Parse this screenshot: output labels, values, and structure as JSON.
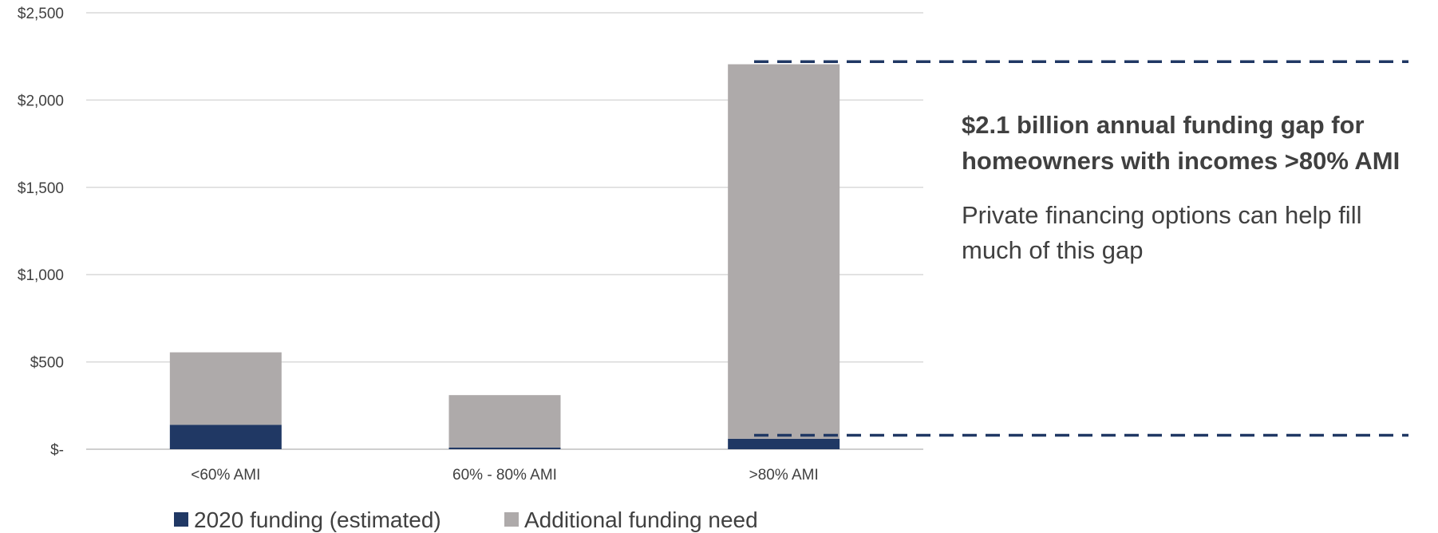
{
  "chart_data": {
    "type": "bar",
    "stacked": true,
    "categories": [
      "<60% AMI",
      "60% - 80% AMI",
      ">80% AMI"
    ],
    "series": [
      {
        "name": "2020 funding (estimated)",
        "color": "#203864",
        "values": [
          140,
          10,
          60
        ]
      },
      {
        "name": "Additional funding need",
        "color": "#AEAAAA",
        "values": [
          415,
          300,
          2145
        ]
      }
    ],
    "ylim": [
      0,
      2500
    ],
    "ytick_values": [
      0,
      500,
      1000,
      1500,
      2000,
      2500
    ],
    "ytick_labels": [
      "$-",
      "$500",
      "$1,000",
      "$1,500",
      "$2,000",
      "$2,500"
    ],
    "grid": true,
    "legend_position": "bottom",
    "reference_lines": [
      {
        "value": 2220,
        "style": "dashed",
        "color": "#203864"
      },
      {
        "value": 80,
        "style": "dashed",
        "color": "#203864"
      }
    ],
    "annotation": {
      "headline": "$2.1 billion annual funding gap for homeowners with incomes >80% AMI",
      "body": "Private financing options can help fill much of this gap"
    }
  }
}
